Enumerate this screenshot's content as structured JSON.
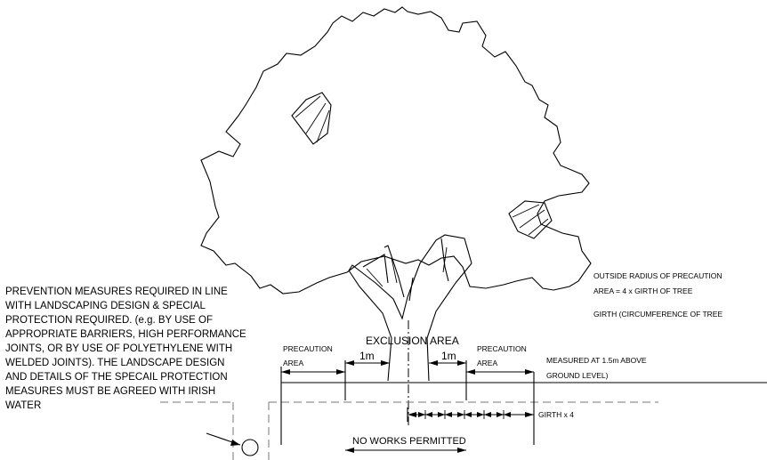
{
  "notes": {
    "prevention_lines": [
      "PREVENTION MEASURES REQUIRED IN LINE",
      "WITH LANDSCAPING DESIGN & SPECIAL",
      "PROTECTION REQUIRED. (e.g. BY USE OF",
      "APPROPRIATE BARRIERS, HIGH PERFORMANCE",
      "JOINTS, OR BY USE OF POLYETHYLENE WITH",
      "WELDED JOINTS). THE LANDSCAPE DESIGN",
      "AND DETAILS OF THE SPECAIL PROTECTION",
      "MEASURES MUST BE AGREED WITH IRISH",
      "WATER"
    ],
    "outside_radius_lines": [
      "OUTSIDE RADIUS OF PRECAUTION",
      "AREA = 4 x GIRTH OF TREE"
    ],
    "girth_line": "GIRTH (CIRCUMFERENCE OF TREE",
    "measured_lines": [
      "MEASURED AT 1.5m ABOVE",
      "GROUND LEVEL)"
    ]
  },
  "labels": {
    "exclusion_area": "EXCLUSION AREA",
    "precaution_left": [
      "PRECAUTION",
      "AREA"
    ],
    "precaution_right": [
      "PRECAUTION",
      "AREA"
    ],
    "dim_1m_left": "1m",
    "dim_1m_right": "1m",
    "girth_x4": "GIRTH x 4",
    "no_works": "NO WORKS PERMITTED"
  }
}
